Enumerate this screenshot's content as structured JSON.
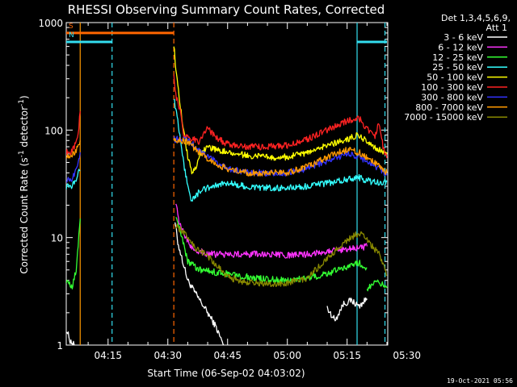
{
  "chart_data": {
    "type": "line",
    "title": "RHESSI Observing Summary Count Rates, Corrected",
    "xlabel": "Start Time (06-Sep-02 04:03:02)",
    "ylabel": "Corrected Count Rate (s",
    "ylabel_sup1": "-1",
    "ylabel_mid": " detector",
    "ylabel_sup2": "-1",
    "ylabel_end": ")",
    "y_scale": "log",
    "ylim": [
      1,
      1000
    ],
    "xlim_minutes": [
      4.5,
      85.2
    ],
    "x_ticks": [
      {
        "label": "04:15",
        "minute": 15
      },
      {
        "label": "04:30",
        "minute": 30
      },
      {
        "label": "04:45",
        "minute": 45
      },
      {
        "label": "05:00",
        "minute": 60
      },
      {
        "label": "05:15",
        "minute": 75
      },
      {
        "label": "05:30",
        "minute": 90
      }
    ],
    "y_ticks": [
      {
        "label": "1",
        "value": 1
      },
      {
        "label": "10",
        "value": 10
      },
      {
        "label": "100",
        "value": 100
      },
      {
        "label": "1000",
        "value": 1000
      }
    ],
    "legend_header": [
      "Det 1,3,4,5,6,9,",
      "Att 1"
    ],
    "legend_position": "right",
    "footer": "19-Oct-2021 05:56",
    "flags": [
      {
        "label": "S",
        "start_minute": 4.5,
        "end_minute": 31.5,
        "value": 800,
        "color": "#ff6600"
      },
      {
        "label": "N",
        "start_minute": 4.5,
        "end_minute": 16.0,
        "value": 660,
        "color": "#33ddee"
      },
      {
        "label": "",
        "start_minute": 77.5,
        "end_minute": 85.0,
        "value": 660,
        "color": "#33ddee"
      }
    ],
    "markers": [
      {
        "minute": 8.0,
        "style": "solid",
        "color": "#ff9900"
      },
      {
        "minute": 16.0,
        "style": "dashed",
        "color": "#33ddee"
      },
      {
        "minute": 31.5,
        "style": "dashed",
        "color": "#ff6600"
      },
      {
        "minute": 77.5,
        "style": "solid",
        "color": "#33ddee"
      },
      {
        "minute": 84.5,
        "style": "dashed",
        "color": "#33ddee"
      }
    ],
    "series": [
      {
        "name": "3 - 6 keV",
        "color": "#ffffff",
        "segments": [
          [
            [
              4.5,
              1.4
            ],
            [
              5.5,
              1.1
            ],
            [
              6.5,
              1.0
            ]
          ],
          [
            [
              31.8,
              14
            ],
            [
              32.5,
              9
            ],
            [
              33.5,
              6.5
            ],
            [
              35,
              4
            ],
            [
              37,
              3
            ],
            [
              40,
              2
            ],
            [
              42,
              1.5
            ],
            [
              44,
              1.0
            ]
          ],
          [
            [
              70,
              2.2
            ],
            [
              72,
              1.7
            ],
            [
              74,
              2.4
            ],
            [
              76,
              2.6
            ],
            [
              78,
              2.3
            ],
            [
              80,
              2.7
            ]
          ]
        ]
      },
      {
        "name": "6 - 12 keV",
        "color": "#ff33ff",
        "segments": [
          [
            [
              32,
              22
            ],
            [
              33,
              13
            ],
            [
              34,
              11
            ],
            [
              36,
              8
            ],
            [
              40,
              7
            ],
            [
              45,
              7
            ],
            [
              50,
              7
            ],
            [
              55,
              7
            ],
            [
              60,
              6.8
            ],
            [
              65,
              7
            ],
            [
              70,
              7.5
            ],
            [
              75,
              7.8
            ],
            [
              78,
              8
            ],
            [
              80,
              8.3
            ]
          ]
        ]
      },
      {
        "name": "12 - 25 keV",
        "color": "#33ff33",
        "segments": [
          [
            [
              4.5,
              4
            ],
            [
              6,
              3.4
            ],
            [
              7,
              5
            ],
            [
              8,
              15
            ]
          ],
          [
            [
              32,
              16
            ],
            [
              33,
              12
            ],
            [
              35,
              6
            ],
            [
              38,
              5
            ],
            [
              45,
              4.6
            ],
            [
              50,
              4.3
            ],
            [
              55,
              4.1
            ],
            [
              60,
              4.0
            ],
            [
              65,
              4.2
            ],
            [
              70,
              4.6
            ],
            [
              75,
              5.4
            ],
            [
              78,
              5.8
            ],
            [
              80,
              5.2
            ]
          ],
          [
            [
              80,
              3.4
            ],
            [
              83,
              3.9
            ],
            [
              85,
              3.4
            ]
          ]
        ]
      },
      {
        "name": "25 - 50 keV",
        "color": "#33ffff",
        "segments": [
          [
            [
              4.5,
              30
            ],
            [
              5.5,
              29
            ],
            [
              6.5,
              32
            ],
            [
              7.5,
              40
            ],
            [
              8,
              42
            ]
          ],
          [
            [
              31.5,
              200
            ],
            [
              32,
              155
            ],
            [
              33,
              90
            ],
            [
              34,
              48
            ],
            [
              35,
              30
            ],
            [
              36,
              22
            ],
            [
              37,
              24
            ],
            [
              38,
              27
            ],
            [
              40,
              29
            ],
            [
              45,
              32
            ],
            [
              50,
              30
            ],
            [
              55,
              29
            ],
            [
              60,
              29
            ],
            [
              65,
              30
            ],
            [
              70,
              32
            ],
            [
              75,
              35
            ],
            [
              78,
              36
            ],
            [
              80,
              34
            ],
            [
              83,
              32
            ],
            [
              85,
              33
            ]
          ]
        ]
      },
      {
        "name": "50 - 100 keV",
        "color": "#ffff00",
        "segments": [
          [
            [
              31.5,
              640
            ],
            [
              32,
              380
            ],
            [
              33,
              180
            ],
            [
              34,
              95
            ],
            [
              35,
              58
            ],
            [
              36,
              40
            ],
            [
              37,
              45
            ],
            [
              38,
              60
            ],
            [
              40,
              68
            ],
            [
              45,
              62
            ],
            [
              50,
              58
            ],
            [
              55,
              56
            ],
            [
              60,
              56
            ],
            [
              65,
              62
            ],
            [
              70,
              72
            ],
            [
              75,
              82
            ],
            [
              78,
              90
            ],
            [
              80,
              78
            ],
            [
              83,
              66
            ],
            [
              85,
              62
            ]
          ]
        ]
      },
      {
        "name": "100 - 300 keV",
        "color": "#ff2222",
        "segments": [
          [
            [
              4.5,
              62
            ],
            [
              5.5,
              62
            ],
            [
              6.5,
              68
            ],
            [
              7.5,
              90
            ],
            [
              8,
              150
            ]
          ],
          [
            [
              31.5,
              310
            ],
            [
              32,
              210
            ],
            [
              33,
              155
            ],
            [
              34,
              88
            ],
            [
              35,
              84
            ],
            [
              36,
              80
            ],
            [
              37,
              82
            ],
            [
              38,
              78
            ],
            [
              40,
              104
            ],
            [
              42,
              85
            ],
            [
              45,
              74
            ],
            [
              50,
              70
            ],
            [
              55,
              70
            ],
            [
              60,
              72
            ],
            [
              65,
              82
            ],
            [
              70,
              100
            ],
            [
              75,
              122
            ],
            [
              78,
              130
            ],
            [
              80,
              102
            ],
            [
              82,
              88
            ],
            [
              83,
              120
            ],
            [
              84,
              70
            ],
            [
              85,
              55
            ]
          ]
        ]
      },
      {
        "name": "300 - 800 keV",
        "color": "#3333ff",
        "segments": [
          [
            [
              4.5,
              35
            ],
            [
              5.5,
              34
            ],
            [
              6.5,
              38
            ],
            [
              7.5,
              52
            ],
            [
              8,
              62
            ]
          ],
          [
            [
              31.5,
              82
            ],
            [
              33,
              82
            ],
            [
              35,
              80
            ],
            [
              37,
              70
            ],
            [
              40,
              56
            ],
            [
              45,
              44
            ],
            [
              50,
              40
            ],
            [
              55,
              40
            ],
            [
              60,
              40
            ],
            [
              65,
              44
            ],
            [
              70,
              52
            ],
            [
              75,
              60
            ],
            [
              78,
              56
            ],
            [
              80,
              52
            ],
            [
              83,
              44
            ],
            [
              85,
              38
            ]
          ]
        ]
      },
      {
        "name": "800 - 7000 keV",
        "color": "#ff9900",
        "segments": [
          [
            [
              4.5,
              58
            ],
            [
              5.5,
              57
            ],
            [
              6.5,
              60
            ],
            [
              7.5,
              70
            ],
            [
              8,
              80
            ]
          ],
          [
            [
              31.5,
              82
            ],
            [
              33,
              80
            ],
            [
              35,
              78
            ],
            [
              37,
              66
            ],
            [
              40,
              54
            ],
            [
              45,
              43
            ],
            [
              50,
              40
            ],
            [
              55,
              40
            ],
            [
              60,
              40
            ],
            [
              65,
              46
            ],
            [
              70,
              56
            ],
            [
              75,
              66
            ],
            [
              78,
              62
            ],
            [
              80,
              56
            ],
            [
              83,
              46
            ],
            [
              85,
              40
            ]
          ]
        ]
      },
      {
        "name": "7000 - 15000 keV",
        "color": "#888800",
        "segments": [
          [
            [
              32,
              13
            ],
            [
              33,
              12
            ],
            [
              35,
              10
            ],
            [
              37,
              8
            ],
            [
              40,
              6.8
            ],
            [
              43,
              5.2
            ],
            [
              45,
              4.3
            ],
            [
              50,
              3.8
            ],
            [
              55,
              3.7
            ],
            [
              60,
              3.8
            ],
            [
              65,
              4.2
            ],
            [
              70,
              6.4
            ],
            [
              75,
              9.5
            ],
            [
              78,
              11
            ],
            [
              80,
              9.5
            ],
            [
              83,
              7
            ],
            [
              85,
              4.5
            ]
          ]
        ]
      }
    ]
  }
}
